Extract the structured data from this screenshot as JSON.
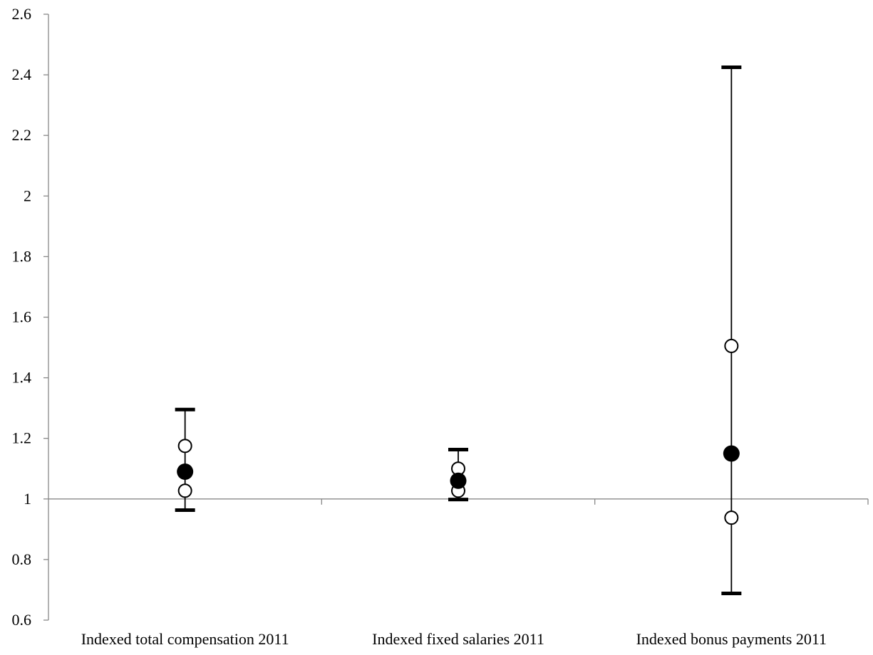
{
  "chart_data": {
    "type": "scatter",
    "title": "",
    "xlabel": "",
    "ylabel": "",
    "ylim": [
      0.6,
      2.6
    ],
    "yticks": [
      0.6,
      0.8,
      1,
      1.2,
      1.4,
      1.6,
      1.8,
      2,
      2.2,
      2.4,
      2.6
    ],
    "ytick_labels": [
      "0.6",
      "0.8",
      "1",
      "1.2",
      "1.4",
      "1.6",
      "1.8",
      "2",
      "2.2",
      "2.4",
      "2.6"
    ],
    "x_axis_crosses_at": 1,
    "grid": false,
    "categories": [
      "Indexed total compensation 2011",
      "Indexed fixed salaries 2011",
      "Indexed bonus payments 2011"
    ],
    "series": [
      {
        "marker": "filled-circle",
        "values": [
          1.09,
          1.06,
          1.15
        ]
      },
      {
        "marker": "open-circle",
        "values": [
          1.175,
          1.1,
          1.505
        ]
      },
      {
        "marker": "open-circle",
        "values": [
          1.027,
          1.027,
          0.938
        ]
      }
    ],
    "error_bars": [
      {
        "low": 0.963,
        "high": 1.295
      },
      {
        "low": 0.998,
        "high": 1.163
      },
      {
        "low": 0.688,
        "high": 2.425
      }
    ],
    "colors": {
      "axis": "#888888",
      "marks": "#000000",
      "background": "#ffffff"
    }
  }
}
